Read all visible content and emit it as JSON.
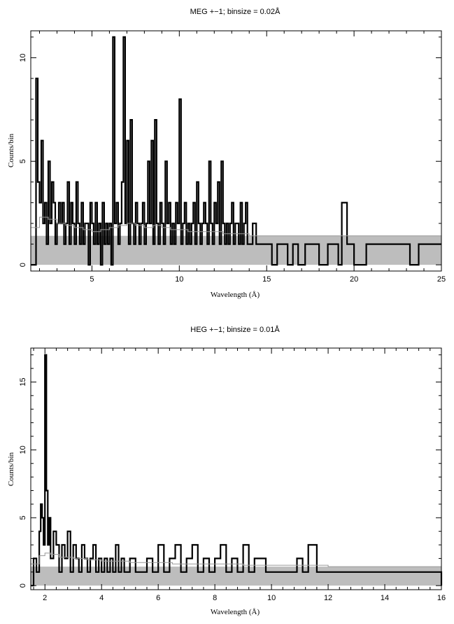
{
  "chart_data": [
    {
      "type": "line",
      "title": "MEG +−1; binsize = 0.02Å",
      "xlabel": "Wavelength (Å)",
      "ylabel": "Counts/bin",
      "xlim": [
        1.5,
        25
      ],
      "ylim": [
        -0.3,
        11.3
      ],
      "xticks": [
        5,
        10,
        15,
        20,
        25
      ],
      "yticks": [
        0,
        5,
        10
      ],
      "grid": false,
      "background_level": 1.4,
      "series": [
        {
          "role": "counts",
          "color": "#000000",
          "x": [
            1.5,
            1.8,
            1.9,
            2.0,
            2.1,
            2.2,
            2.3,
            2.4,
            2.5,
            2.6,
            2.7,
            2.8,
            2.9,
            3.0,
            3.1,
            3.2,
            3.3,
            3.4,
            3.5,
            3.6,
            3.7,
            3.8,
            3.9,
            4.0,
            4.1,
            4.2,
            4.3,
            4.4,
            4.5,
            4.6,
            4.7,
            4.8,
            4.9,
            5.0,
            5.1,
            5.2,
            5.3,
            5.4,
            5.5,
            5.6,
            5.7,
            5.8,
            5.9,
            6.0,
            6.1,
            6.2,
            6.3,
            6.4,
            6.5,
            6.6,
            6.7,
            6.8,
            6.9,
            7.0,
            7.1,
            7.2,
            7.3,
            7.4,
            7.5,
            7.6,
            7.7,
            7.8,
            7.9,
            8.0,
            8.1,
            8.2,
            8.3,
            8.4,
            8.5,
            8.6,
            8.7,
            8.8,
            8.9,
            9.0,
            9.1,
            9.2,
            9.3,
            9.4,
            9.5,
            9.6,
            9.7,
            9.8,
            9.9,
            10.0,
            10.1,
            10.2,
            10.3,
            10.4,
            10.5,
            10.6,
            10.7,
            10.8,
            10.9,
            11.0,
            11.1,
            11.2,
            11.3,
            11.4,
            11.5,
            11.6,
            11.7,
            11.8,
            11.9,
            12.0,
            12.1,
            12.2,
            12.3,
            12.4,
            12.5,
            12.6,
            12.7,
            12.8,
            12.9,
            13.0,
            13.1,
            13.2,
            13.3,
            13.4,
            13.5,
            13.6,
            13.7,
            13.8,
            13.9,
            14.0,
            14.2,
            14.4,
            14.6,
            14.8,
            15.0,
            15.3,
            15.6,
            15.9,
            16.2,
            16.5,
            16.8,
            17.2,
            17.5,
            18.0,
            18.5,
            18.9,
            19.1,
            19.3,
            19.6,
            20.0,
            20.7,
            21.2,
            21.6,
            22.0,
            22.4,
            22.8,
            23.2,
            23.7,
            24.2,
            24.6,
            25.0
          ],
          "y": [
            0,
            9,
            4,
            3,
            6,
            2,
            3,
            1,
            5,
            2,
            4,
            3,
            1,
            2,
            3,
            2,
            3,
            1,
            2,
            4,
            1,
            3,
            2,
            1,
            4,
            2,
            1,
            3,
            1,
            2,
            2,
            0,
            3,
            2,
            1,
            3,
            1,
            2,
            0,
            3,
            1,
            2,
            1,
            2,
            0,
            11,
            2,
            3,
            1,
            2,
            4,
            11,
            2,
            6,
            1,
            7,
            2,
            1,
            3,
            2,
            1,
            2,
            3,
            1,
            2,
            5,
            2,
            6,
            1,
            7,
            2,
            1,
            3,
            2,
            1,
            5,
            2,
            3,
            1,
            2,
            1,
            3,
            2,
            8,
            1,
            2,
            3,
            1,
            2,
            1,
            2,
            3,
            1,
            4,
            2,
            1,
            2,
            3,
            2,
            1,
            5,
            2,
            1,
            3,
            2,
            4,
            1,
            5,
            2,
            1,
            2,
            1,
            2,
            3,
            1,
            2,
            2,
            1,
            3,
            1,
            2,
            3,
            1,
            1,
            2,
            1,
            1,
            1,
            1,
            0,
            1,
            1,
            0,
            1,
            0,
            1,
            1,
            0,
            1,
            1,
            0,
            3,
            1,
            0,
            1,
            1,
            1,
            1,
            1,
            1,
            0,
            1,
            1,
            1,
            1
          ]
        },
        {
          "role": "model",
          "color": "#999999",
          "x": [
            1.5,
            2.0,
            2.5,
            3.0,
            3.5,
            4.0,
            4.5,
            5.0,
            5.5,
            6.0,
            6.5,
            7.0,
            7.5,
            8.0,
            8.5,
            9.0,
            9.5,
            10.0,
            10.5,
            11.0,
            11.5,
            12.0,
            12.5,
            13.0,
            13.5,
            14.0,
            15.0,
            16.0,
            17.0,
            18.0,
            19.0,
            20.0,
            21.0,
            22.0,
            23.0,
            24.0,
            25.0
          ],
          "y": [
            1.8,
            2.3,
            2.2,
            2.0,
            1.9,
            1.8,
            1.7,
            1.6,
            1.7,
            1.8,
            1.9,
            2.0,
            1.9,
            1.8,
            1.9,
            1.8,
            1.7,
            1.7,
            1.6,
            1.6,
            1.6,
            1.6,
            1.5,
            1.5,
            1.5,
            1.4,
            1.4,
            1.4,
            1.4,
            1.4,
            1.4,
            1.4,
            1.4,
            1.4,
            1.4,
            1.4,
            1.4
          ]
        }
      ]
    },
    {
      "type": "line",
      "title": "HEG +−1; binsize = 0.01Å",
      "xlabel": "Wavelength (Å)",
      "ylabel": "Counts/bin",
      "xlim": [
        1.5,
        16
      ],
      "ylim": [
        -0.3,
        17.5
      ],
      "xticks": [
        2,
        4,
        6,
        8,
        10,
        12,
        14,
        16
      ],
      "yticks": [
        0,
        5,
        10,
        15
      ],
      "grid": false,
      "background_level": 1.4,
      "series": [
        {
          "role": "counts",
          "color": "#000000",
          "x": [
            1.5,
            1.6,
            1.7,
            1.8,
            1.85,
            1.9,
            1.95,
            2.0,
            2.05,
            2.1,
            2.15,
            2.2,
            2.3,
            2.4,
            2.5,
            2.6,
            2.7,
            2.8,
            2.9,
            3.0,
            3.1,
            3.2,
            3.3,
            3.4,
            3.5,
            3.6,
            3.7,
            3.8,
            3.9,
            4.0,
            4.1,
            4.2,
            4.3,
            4.4,
            4.5,
            4.6,
            4.7,
            4.8,
            4.9,
            5.0,
            5.2,
            5.4,
            5.6,
            5.8,
            6.0,
            6.2,
            6.4,
            6.6,
            6.8,
            7.0,
            7.2,
            7.4,
            7.6,
            7.8,
            8.0,
            8.2,
            8.4,
            8.6,
            8.8,
            9.0,
            9.2,
            9.4,
            9.6,
            9.8,
            10.0,
            10.3,
            10.6,
            10.9,
            11.1,
            11.3,
            11.6,
            11.9,
            12.2,
            12.5,
            12.8,
            13.1,
            13.4,
            13.7,
            14.0,
            14.3,
            14.6,
            14.9,
            15.2,
            15.5,
            15.8,
            16.0
          ],
          "y": [
            0,
            2,
            1,
            4,
            6,
            5,
            3,
            17,
            7,
            3,
            5,
            2,
            4,
            3,
            1,
            3,
            2,
            4,
            1,
            3,
            2,
            1,
            3,
            2,
            1,
            2,
            3,
            1,
            2,
            1,
            2,
            1,
            2,
            1,
            3,
            1,
            2,
            1,
            1,
            2,
            1,
            1,
            2,
            1,
            3,
            1,
            2,
            3,
            1,
            2,
            3,
            1,
            2,
            1,
            2,
            3,
            1,
            2,
            1,
            3,
            1,
            2,
            2,
            1,
            1,
            1,
            1,
            2,
            1,
            3,
            1,
            1,
            1,
            1,
            1,
            1,
            1,
            1,
            1,
            1,
            1,
            1,
            1,
            1,
            1,
            0
          ]
        },
        {
          "role": "model",
          "color": "#999999",
          "x": [
            1.5,
            1.8,
            2.0,
            2.2,
            2.5,
            3.0,
            3.5,
            4.0,
            4.5,
            5.0,
            5.5,
            6.0,
            6.5,
            7.0,
            7.5,
            8.0,
            9.0,
            10.0,
            11.0,
            12.0,
            13.0,
            14.0,
            15.0,
            16.0
          ],
          "y": [
            1.6,
            2.2,
            2.4,
            2.3,
            2.1,
            2.0,
            1.9,
            1.8,
            1.8,
            1.7,
            1.7,
            1.7,
            1.6,
            1.6,
            1.6,
            1.6,
            1.5,
            1.5,
            1.5,
            1.4,
            1.4,
            1.4,
            1.4,
            1.4
          ]
        }
      ]
    }
  ]
}
